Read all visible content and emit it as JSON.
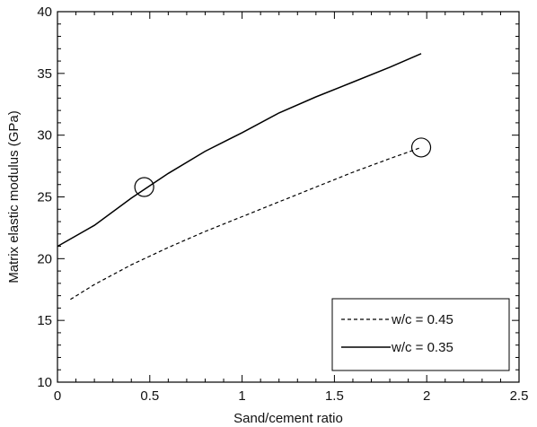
{
  "chart_data": {
    "type": "line",
    "title": "",
    "xlabel": "Sand/cement ratio",
    "ylabel": "Matrix elastic modulus (GPa)",
    "xlim": [
      0,
      2.5
    ],
    "ylim": [
      10,
      40
    ],
    "x_ticks": [
      0,
      0.5,
      1,
      1.5,
      2,
      2.5
    ],
    "x_tick_labels": [
      "0",
      "0.5",
      "1",
      "1.5",
      "2",
      "2.5"
    ],
    "y_ticks": [
      10,
      15,
      20,
      25,
      30,
      35,
      40
    ],
    "y_tick_labels": [
      "10",
      "15",
      "20",
      "25",
      "30",
      "35",
      "40"
    ],
    "grid": false,
    "legend_position": "bottom-right",
    "series": [
      {
        "name": "w/c = 0.45",
        "style": "dashed",
        "color": "#000000",
        "x": [
          0.07,
          0.2,
          0.4,
          0.6,
          0.8,
          1.0,
          1.2,
          1.4,
          1.6,
          1.8,
          1.97
        ],
        "y": [
          16.7,
          17.9,
          19.5,
          20.9,
          22.2,
          23.4,
          24.6,
          25.8,
          27.0,
          28.1,
          29.0
        ]
      },
      {
        "name": "w/c = 0.35",
        "style": "solid",
        "color": "#000000",
        "x": [
          0.0,
          0.2,
          0.4,
          0.6,
          0.8,
          1.0,
          1.2,
          1.4,
          1.6,
          1.8,
          1.97
        ],
        "y": [
          21.0,
          22.7,
          24.9,
          26.9,
          28.7,
          30.2,
          31.8,
          33.1,
          34.3,
          35.5,
          36.6
        ]
      }
    ],
    "annotations": [
      {
        "shape": "circle",
        "x": 0.47,
        "y": 25.8
      },
      {
        "shape": "circle",
        "x": 1.97,
        "y": 29.0
      }
    ]
  }
}
